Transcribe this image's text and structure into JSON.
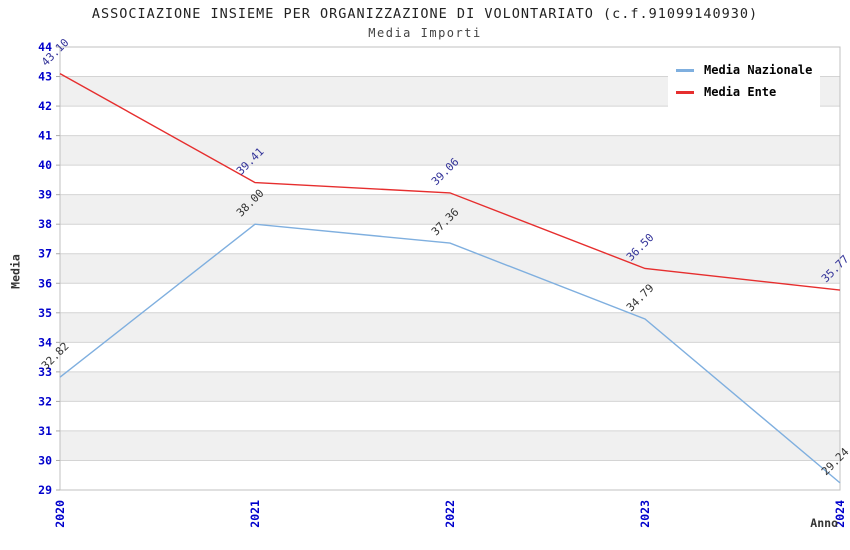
{
  "chart_data": {
    "type": "line",
    "title": "ASSOCIAZIONE INSIEME PER ORGANIZZAZIONE DI VOLONTARIATO (c.f.91099140930)",
    "subtitle": "Media Importi",
    "categories": [
      "2020",
      "2021",
      "2022",
      "2023",
      "2024"
    ],
    "series": [
      {
        "name": "Media Nazionale",
        "values": [
          32.82,
          38.0,
          37.36,
          34.79,
          29.24
        ],
        "value_labels": [
          "32.82",
          "38.00",
          "37.36",
          "34.79",
          "29.24"
        ],
        "color": "#7FAFDF",
        "label_color": "#333333"
      },
      {
        "name": "Media Ente",
        "values": [
          43.1,
          39.41,
          39.06,
          36.5,
          35.77
        ],
        "value_labels": [
          "43.10",
          "39.41",
          "39.06",
          "36.50",
          "35.77"
        ],
        "color": "#E62E2E",
        "label_color": "#333399"
      }
    ],
    "xlabel": "Anno",
    "ylabel": "Media",
    "ylim": [
      29,
      44
    ],
    "yticks": [
      29,
      30,
      31,
      32,
      33,
      34,
      35,
      36,
      37,
      38,
      39,
      40,
      41,
      42,
      43,
      44
    ],
    "grid": true,
    "legend_position": "top-right",
    "colors": {
      "tick_label": "#0000CC",
      "band": "#F0F0F0",
      "grid": "#D4D4D4",
      "border": "#C0C0C0",
      "axis_tick": "#AAAAAA"
    }
  }
}
